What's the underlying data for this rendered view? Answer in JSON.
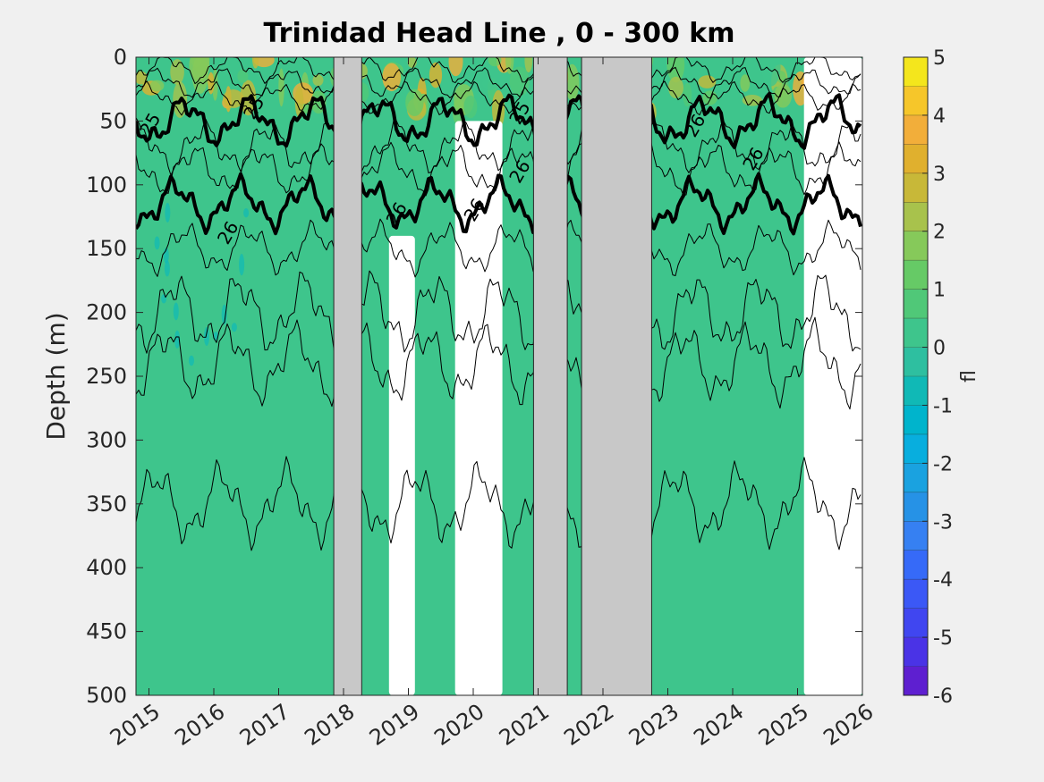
{
  "chart_data": {
    "type": "heatmap",
    "title": "Trinidad Head Line , 0 - 300 km",
    "xlabel": "",
    "ylabel": "Depth (m)",
    "x_ticks": [
      "2015",
      "2016",
      "2017",
      "2018",
      "2019",
      "2020",
      "2021",
      "2022",
      "2023",
      "2024",
      "2025",
      "2026"
    ],
    "xlim": [
      2014.8,
      2026.0
    ],
    "y_ticks": [
      0,
      50,
      100,
      150,
      200,
      250,
      300,
      350,
      400,
      450,
      500
    ],
    "ylim": [
      0,
      500
    ],
    "y_reversed": true,
    "base_value": 0,
    "colorbar": {
      "label": "fl",
      "ticks": [
        5,
        4,
        3,
        2,
        1,
        0,
        -1,
        -2,
        -3,
        -4,
        -5,
        -6
      ],
      "range": [
        -6,
        5
      ],
      "levels": 22,
      "colors": [
        "#5e1fd0",
        "#4a33e6",
        "#4046f0",
        "#3b58f6",
        "#366af8",
        "#3680f2",
        "#2692e6",
        "#1aa2e0",
        "#08aede",
        "#00b4cc",
        "#10b9b6",
        "#2ebfa0",
        "#3ec58c",
        "#50c878",
        "#66ca66",
        "#86c95a",
        "#a8c24c",
        "#c8b838",
        "#e0b02e",
        "#f2ae3a",
        "#f6c62a",
        "#f4e61c"
      ]
    },
    "missing_bands": [
      {
        "from": 2017.85,
        "to": 2018.28
      },
      {
        "from": 2020.93,
        "to": 2021.45
      },
      {
        "from": 2021.67,
        "to": 2022.75
      }
    ],
    "blank_regions": [
      {
        "from": 2019.72,
        "to": 2020.45,
        "depth_from": 50,
        "depth_to": 500
      },
      {
        "from": 2018.7,
        "to": 2019.1,
        "depth_from": 140,
        "depth_to": 500
      },
      {
        "from": 2025.1,
        "to": 2026.0,
        "depth_from": 0,
        "depth_to": 500
      }
    ],
    "contours": [
      {
        "level": "25",
        "bold": true,
        "labeled": true,
        "mean_depth": 50
      },
      {
        "level": "26",
        "bold": true,
        "labeled": true,
        "mean_depth": 115
      },
      {
        "level": "",
        "bold": false,
        "labeled": false,
        "mean_depth": 8
      },
      {
        "level": "",
        "bold": false,
        "labeled": false,
        "mean_depth": 20
      },
      {
        "level": "",
        "bold": false,
        "labeled": false,
        "mean_depth": 32
      },
      {
        "level": "",
        "bold": false,
        "labeled": false,
        "mean_depth": 70
      },
      {
        "level": "",
        "bold": false,
        "labeled": false,
        "mean_depth": 88
      },
      {
        "level": "",
        "bold": false,
        "labeled": false,
        "mean_depth": 150
      },
      {
        "level": "",
        "bold": false,
        "labeled": false,
        "mean_depth": 200
      },
      {
        "level": "",
        "bold": false,
        "labeled": false,
        "mean_depth": 240
      },
      {
        "level": "",
        "bold": false,
        "labeled": false,
        "mean_depth": 350
      }
    ],
    "contour_labels": [
      {
        "text": "25",
        "x": 2016.7,
        "y": 42
      },
      {
        "text": "25",
        "x": 2015.1,
        "y": 55
      },
      {
        "text": "26",
        "x": 2016.3,
        "y": 140
      },
      {
        "text": "26",
        "x": 2018.9,
        "y": 125
      },
      {
        "text": "26",
        "x": 2020.1,
        "y": 122
      },
      {
        "text": "26",
        "x": 2020.8,
        "y": 92
      },
      {
        "text": "25",
        "x": 2020.8,
        "y": 46
      },
      {
        "text": "26",
        "x": 2023.5,
        "y": 56
      },
      {
        "text": "26",
        "x": 2024.4,
        "y": 82
      }
    ]
  }
}
